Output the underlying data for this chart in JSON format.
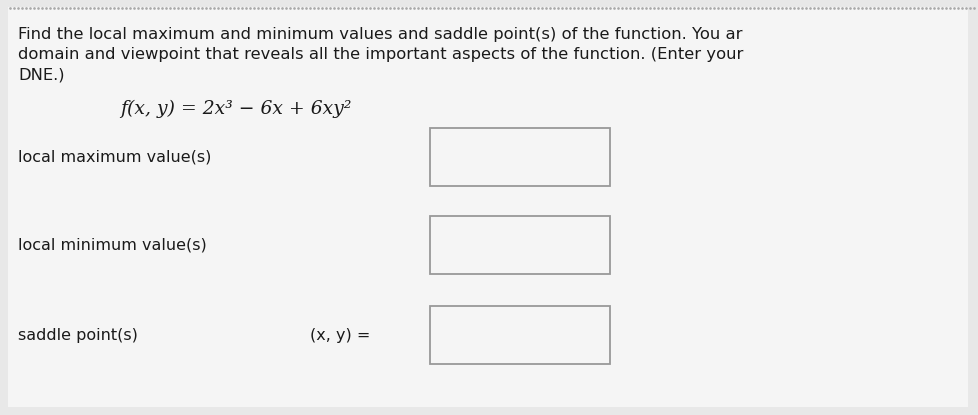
{
  "title_line1": "Find the local maximum and minimum values and saddle point(s) of the function. You ar",
  "title_line2": "domain and viewpoint that reveals all the important aspects of the function. (Enter your",
  "title_line3": "DNE.)",
  "function_label": "f(x, y) = 2x³ − 6x + 6xy²",
  "row1_label": "local maximum value(s)",
  "row2_label": "local minimum value(s)",
  "row3_label": "saddle point(s)",
  "row3_prefix": "(x, y) =",
  "bg_color": "#e8e8e8",
  "content_bg": "#f5f5f5",
  "box_fill": "#f5f5f5",
  "box_edge": "#999999",
  "text_color": "#1a1a1a",
  "dot_color": "#aaaaaa",
  "header_text_size": 11.8,
  "label_text_size": 11.5,
  "func_text_size": 13.5
}
